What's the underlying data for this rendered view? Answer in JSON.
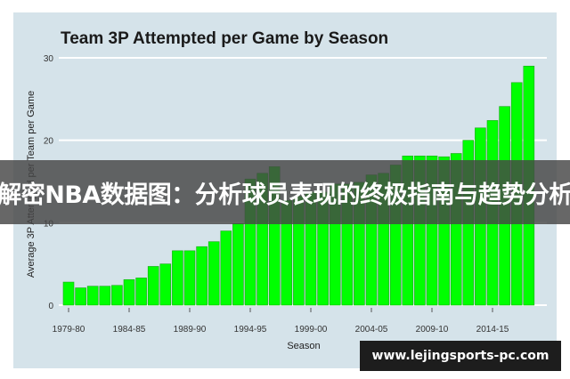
{
  "chart_data": {
    "type": "bar",
    "title": "Team 3P Attempted per Game by Season",
    "xlabel": "Season",
    "ylabel": "Average 3P Attempted per Team per Game",
    "ylim": [
      0,
      30
    ],
    "yticks": [
      0,
      10,
      20,
      30
    ],
    "grid": "horizontal",
    "bar_color": "#00ff00",
    "categories": [
      "1979-80",
      "1980-81",
      "1981-82",
      "1982-83",
      "1983-84",
      "1984-85",
      "1985-86",
      "1986-87",
      "1987-88",
      "1988-89",
      "1989-90",
      "1990-91",
      "1991-92",
      "1992-93",
      "1993-94",
      "1994-95",
      "1995-96",
      "1996-97",
      "1997-98",
      "1998-99",
      "1999-00",
      "2000-01",
      "2001-02",
      "2002-03",
      "2003-04",
      "2004-05",
      "2005-06",
      "2006-07",
      "2007-08",
      "2008-09",
      "2009-10",
      "2010-11",
      "2011-12",
      "2012-13",
      "2013-14",
      "2014-15",
      "2015-16",
      "2016-17",
      "2017-18"
    ],
    "values": [
      2.8,
      2.1,
      2.3,
      2.3,
      2.4,
      3.1,
      3.3,
      4.7,
      5.0,
      6.6,
      6.6,
      7.1,
      7.7,
      9.0,
      9.9,
      15.3,
      16.0,
      16.8,
      12.7,
      13.2,
      13.7,
      13.7,
      14.7,
      14.7,
      14.9,
      15.8,
      16.0,
      17.0,
      18.1,
      18.1,
      18.1,
      18.0,
      18.4,
      20.0,
      21.5,
      22.4,
      24.1,
      27.0,
      29.0
    ],
    "xtick_labels": [
      "1979-80",
      "1984-85",
      "1989-90",
      "1994-95",
      "1999-00",
      "2004-05",
      "2009-10",
      "2014-15"
    ]
  },
  "overlay": {
    "banner_text": "解密NBA数据图：分析球员表现的终极指南与趋势分析",
    "watermark_text": "www.lejingsports-pc.com"
  }
}
